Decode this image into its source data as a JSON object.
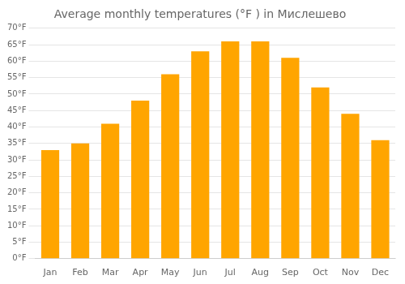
{
  "chart_data": {
    "type": "bar",
    "title": "Average monthly temperatures (°F ) in Мислешево",
    "categories": [
      "Jan",
      "Feb",
      "Mar",
      "Apr",
      "May",
      "Jun",
      "Jul",
      "Aug",
      "Sep",
      "Oct",
      "Nov",
      "Dec"
    ],
    "values": [
      33,
      35,
      41,
      48,
      56,
      63,
      66,
      66,
      61,
      52,
      44,
      36
    ],
    "color": "#FFA500",
    "ylim": [
      0,
      70
    ],
    "yticks": [
      {
        "value": 0,
        "label": "0°F"
      },
      {
        "value": 5,
        "label": "5°F"
      },
      {
        "value": 10,
        "label": "10°F"
      },
      {
        "value": 15,
        "label": "15°F"
      },
      {
        "value": 20,
        "label": "20°F"
      },
      {
        "value": 25,
        "label": "25°F"
      },
      {
        "value": 30,
        "label": "30°F"
      },
      {
        "value": 35,
        "label": "35°F"
      },
      {
        "value": 40,
        "label": "40°F"
      },
      {
        "value": 45,
        "label": "45°F"
      },
      {
        "value": 50,
        "label": "50°F"
      },
      {
        "value": 55,
        "label": "55°F"
      },
      {
        "value": 60,
        "label": "60°F"
      },
      {
        "value": 65,
        "label": "65°F"
      },
      {
        "value": 70,
        "label": "70°F"
      }
    ],
    "grid": true
  }
}
